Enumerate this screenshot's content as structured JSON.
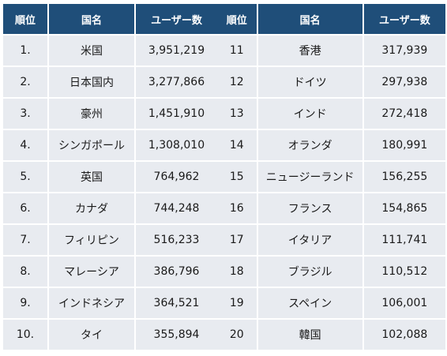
{
  "headers": {
    "rank": "順位",
    "country": "国名",
    "users": "ユーザー数"
  },
  "left_rows": [
    {
      "rank": "1.",
      "country": "米国",
      "users": "3,951,219"
    },
    {
      "rank": "2.",
      "country": "日本国内",
      "users": "3,277,866"
    },
    {
      "rank": "3.",
      "country": "豪州",
      "users": "1,451,910"
    },
    {
      "rank": "4.",
      "country": "シンガポール",
      "users": "1,308,010"
    },
    {
      "rank": "5.",
      "country": "英国",
      "users": "764,962"
    },
    {
      "rank": "6.",
      "country": "カナダ",
      "users": "744,248"
    },
    {
      "rank": "7.",
      "country": "フィリピン",
      "users": "516,233"
    },
    {
      "rank": "8.",
      "country": "マレーシア",
      "users": "386,796"
    },
    {
      "rank": "9.",
      "country": "インドネシア",
      "users": "364,521"
    },
    {
      "rank": "10.",
      "country": "タイ",
      "users": "355,894"
    }
  ],
  "right_rows": [
    {
      "rank": "11",
      "country": "香港",
      "users": "317,939"
    },
    {
      "rank": "12",
      "country": "ドイツ",
      "users": "297,938"
    },
    {
      "rank": "13",
      "country": "インド",
      "users": "272,418"
    },
    {
      "rank": "14",
      "country": "オランダ",
      "users": "180,991"
    },
    {
      "rank": "15",
      "country": "ニュージーランド",
      "users": "156,255"
    },
    {
      "rank": "16",
      "country": "フランス",
      "users": "154,865"
    },
    {
      "rank": "17",
      "country": "イタリア",
      "users": "111,741"
    },
    {
      "rank": "18",
      "country": "ブラジル",
      "users": "110,512"
    },
    {
      "rank": "19",
      "country": "スペイン",
      "users": "106,001"
    },
    {
      "rank": "20",
      "country": "韓国",
      "users": "102,088"
    }
  ]
}
